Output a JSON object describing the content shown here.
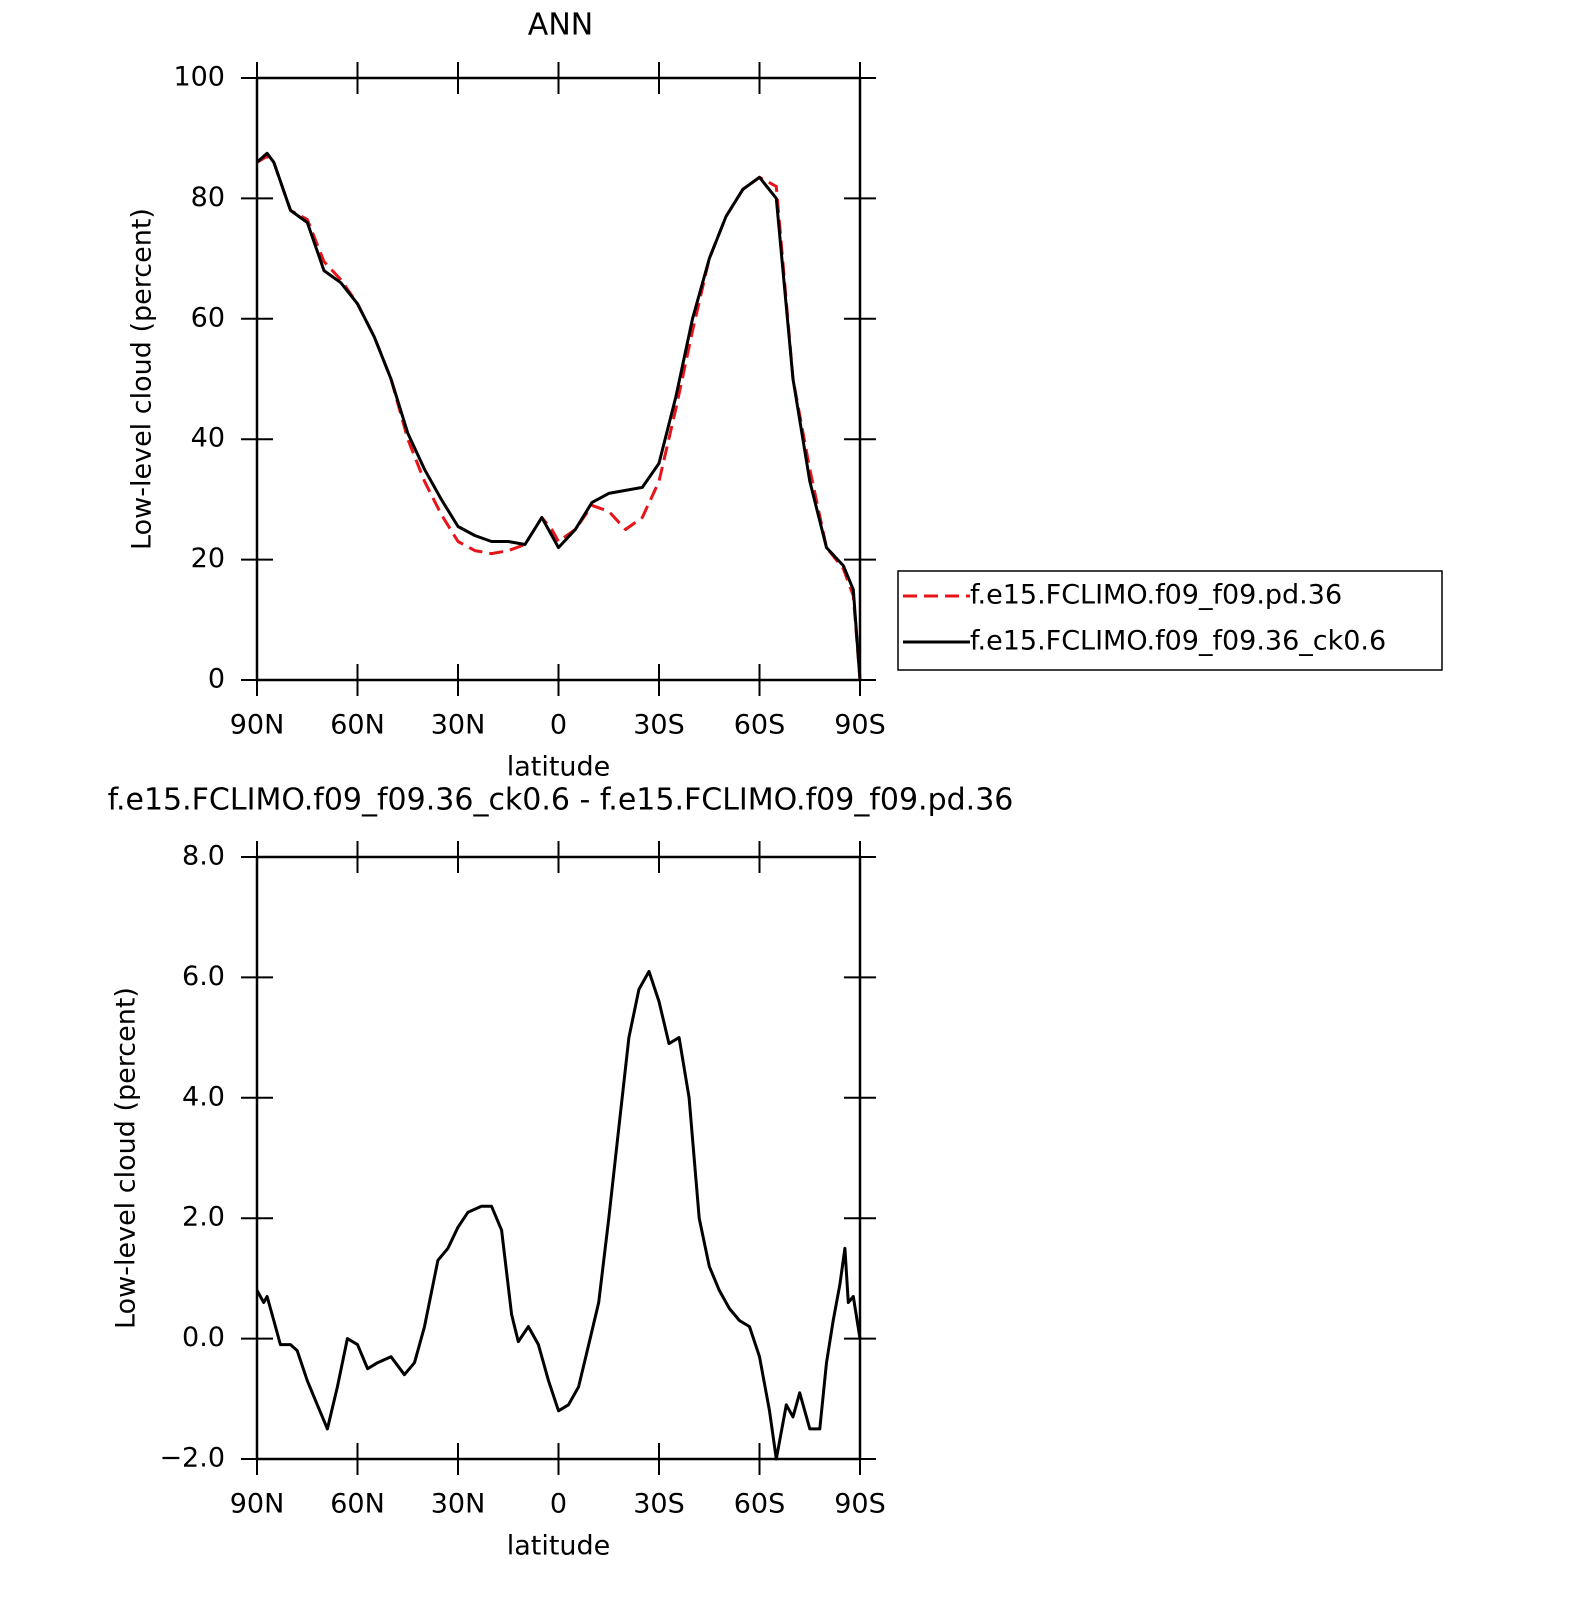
{
  "chart_data": [
    {
      "type": "line",
      "title": "ANN",
      "xlabel": "latitude",
      "ylabel": "Low-level cloud (percent)",
      "x": [
        90,
        87,
        85,
        80,
        75,
        70,
        65,
        60,
        55,
        50,
        45,
        40,
        35,
        30,
        25,
        20,
        15,
        10,
        5,
        2,
        0,
        -5,
        -10,
        -15,
        -20,
        -25,
        -30,
        -35,
        -40,
        -45,
        -50,
        -55,
        -60,
        -65,
        -70,
        -75,
        -80,
        -85,
        -88,
        -90
      ],
      "series": [
        {
          "name": "f.e15.FCLIMO.f09_f09.pd.36",
          "color": "#e8141a",
          "line_style": "dashed",
          "values": [
            86,
            87,
            86,
            78,
            76.5,
            69.5,
            66.5,
            62.5,
            57,
            50,
            40,
            33,
            27.5,
            23,
            21.5,
            21,
            21.5,
            22.5,
            27,
            25,
            23,
            25,
            29,
            28,
            25,
            27,
            33,
            45,
            58,
            70,
            77,
            81.5,
            83.5,
            82,
            50,
            35,
            22,
            18.5,
            14,
            0
          ]
        },
        {
          "name": "f.e15.FCLIMO.f09_f09.36_ck0.6",
          "color": "#000000",
          "line_style": "solid",
          "values": [
            86,
            87.5,
            86,
            78,
            76,
            68,
            66,
            62.5,
            57,
            50,
            41,
            35,
            30,
            25.5,
            24,
            23,
            23,
            22.5,
            27,
            24,
            22,
            25,
            29.5,
            31,
            31.5,
            32,
            36,
            47,
            60,
            70,
            77,
            81.5,
            83.5,
            80,
            50,
            33,
            22,
            19,
            15,
            0
          ]
        }
      ],
      "xlim": [
        90,
        -90
      ],
      "xticks": [
        {
          "value": 90,
          "label": "90N"
        },
        {
          "value": 60,
          "label": "60N"
        },
        {
          "value": 30,
          "label": "30N"
        },
        0,
        {
          "value": -30,
          "label": "30S"
        },
        {
          "value": -60,
          "label": "60S"
        },
        {
          "value": -90,
          "label": "90S"
        }
      ],
      "ylim": [
        0,
        100
      ],
      "yticks": [
        0,
        20,
        40,
        60,
        80,
        100
      ],
      "legend": "right"
    },
    {
      "type": "line",
      "title": "f.e15.FCLIMO.f09_f09.36_ck0.6 - f.e15.FCLIMO.f09_f09.pd.36",
      "xlabel": "latitude",
      "ylabel": "Low-level cloud (percent)",
      "x": [
        90,
        88,
        87,
        85,
        83,
        80,
        78,
        75,
        72,
        69,
        66,
        63,
        60,
        57,
        54,
        50,
        46,
        43,
        40,
        36,
        33,
        30,
        27,
        23,
        20,
        17,
        14,
        12,
        9,
        6,
        3,
        0,
        -3,
        -6,
        -9,
        -12,
        -15,
        -18,
        -21,
        -24,
        -27,
        -30,
        -33,
        -36,
        -39,
        -42,
        -45,
        -48,
        -51,
        -54,
        -57,
        -60,
        -63,
        -65,
        -68,
        -70,
        -72,
        -75,
        -78,
        -80,
        -82,
        -84,
        -85.5,
        -86.5,
        -88,
        -90
      ],
      "series": [
        {
          "name": "difference",
          "color": "#000000",
          "line_style": "solid",
          "values": [
            0.8,
            0.6,
            0.7,
            0.3,
            -0.1,
            -0.1,
            -0.2,
            -0.7,
            -1.1,
            -1.5,
            -0.8,
            0.0,
            -0.1,
            -0.5,
            -0.4,
            -0.3,
            -0.6,
            -0.4,
            0.2,
            1.3,
            1.5,
            1.85,
            2.1,
            2.2,
            2.2,
            1.8,
            0.4,
            -0.05,
            0.2,
            -0.1,
            -0.7,
            -1.2,
            -1.1,
            -0.8,
            -0.1,
            0.6,
            2.0,
            3.5,
            5.0,
            5.8,
            6.1,
            5.6,
            4.9,
            5.0,
            4.0,
            2.0,
            1.2,
            0.8,
            0.5,
            0.3,
            0.2,
            -0.3,
            -1.2,
            -2.0,
            -1.1,
            -1.3,
            -0.9,
            -1.5,
            -1.5,
            -0.4,
            0.3,
            0.9,
            1.5,
            0.6,
            0.7,
            0
          ]
        }
      ],
      "xlim": [
        90,
        -90
      ],
      "xticks": [
        {
          "value": 90,
          "label": "90N"
        },
        {
          "value": 60,
          "label": "60N"
        },
        {
          "value": 30,
          "label": "30N"
        },
        0,
        {
          "value": -30,
          "label": "30S"
        },
        {
          "value": -60,
          "label": "60S"
        },
        {
          "value": -90,
          "label": "90S"
        }
      ],
      "ylim": [
        -2,
        8
      ],
      "yticks": [
        {
          "value": -2,
          "label": "−2.0"
        },
        {
          "value": 0,
          "label": "0.0"
        },
        {
          "value": 2,
          "label": "2.0"
        },
        {
          "value": 4,
          "label": "4.0"
        },
        {
          "value": 6,
          "label": "6.0"
        },
        {
          "value": 8,
          "label": "8.0"
        }
      ]
    }
  ]
}
